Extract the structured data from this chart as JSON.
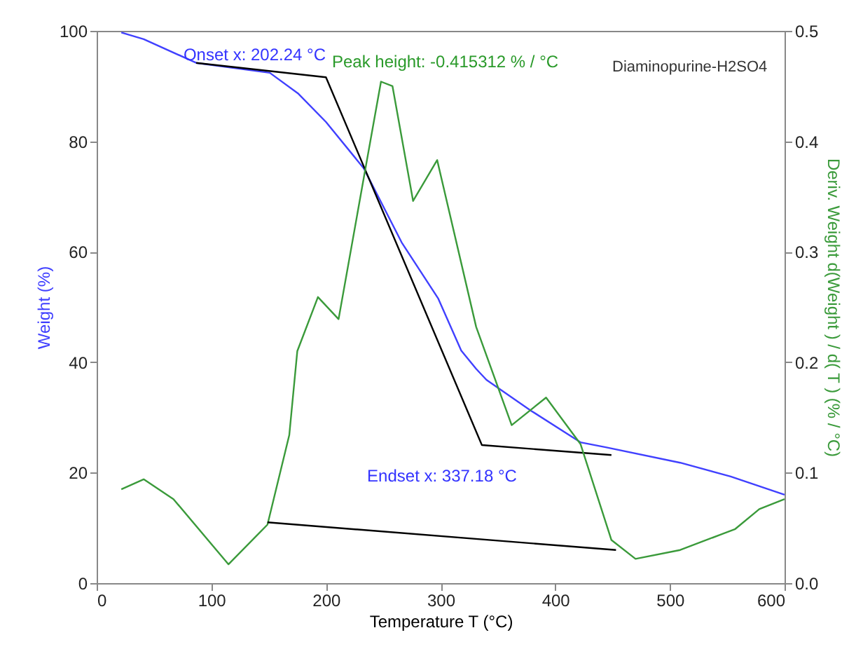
{
  "chart_data": {
    "type": "line",
    "xlabel": "Temperature T (°C)",
    "ylabel": "Weight (%)",
    "y2label": "Deriv. Weight d(Weight ) / d( T ) (% / °C)",
    "xlim": [
      0,
      600
    ],
    "xticks": [
      0,
      100,
      200,
      300,
      400,
      500,
      600
    ],
    "ylim": [
      0,
      100
    ],
    "yticks": [
      0,
      20,
      40,
      60,
      80,
      100
    ],
    "y2lim": [
      0,
      0.5
    ],
    "y2ticks": [
      {
        "value": 0,
        "label": "0.0"
      },
      0.1,
      0.2,
      0.3,
      0.4,
      0.5
    ],
    "grid": false,
    "marker": "none",
    "line_style": "solid",
    "series": [
      {
        "color": "#4040ff",
        "x": [
          21.5,
          41,
          86.8,
          151,
          176,
          200,
          233,
          266,
          298,
          318,
          331,
          340,
          379,
          422,
          444,
          509,
          553,
          600
        ],
        "values": [
          99.7,
          98.5,
          94.2,
          92.4,
          88.6,
          83.5,
          75.1,
          61.7,
          51.5,
          42.1,
          38.8,
          36.8,
          31.2,
          25.5,
          24.6,
          21.8,
          19.3,
          16
        ]
      },
      {
        "color": "#000000",
        "x": [
          86.8,
          200,
          336,
          449
        ],
        "values": [
          94.2,
          91.6,
          25.0,
          23.2
        ]
      },
      {
        "color": "#3a9a3a",
        "axis": "y2",
        "x": [
          21.5,
          41,
          67,
          115,
          149,
          168,
          175,
          193,
          211,
          233,
          248,
          258,
          276,
          297,
          331,
          362,
          392,
          422,
          449,
          470,
          509,
          557,
          578,
          600
        ],
        "values": [
          0.085,
          0.094,
          0.076,
          0.017,
          0.053,
          0.134,
          0.21,
          0.259,
          0.239,
          0.367,
          0.454,
          0.45,
          0.346,
          0.383,
          0.232,
          0.143,
          0.168,
          0.126,
          0.039,
          0.022,
          0.03,
          0.049,
          0.067,
          0.076
        ]
      },
      {
        "color": "#000000",
        "axis": "y2",
        "x": [
          149,
          453
        ],
        "values": [
          0.055,
          0.03
        ]
      }
    ],
    "annotations": [
      {
        "text": "Onset x: 202.24 °C",
        "x": 202.24,
        "y": 91.6
      },
      "Peak height: -0.415312 % / °C",
      "Diaminopurine-H2SO4",
      {
        "text": "Endset x: 337.18 °C",
        "x": 337.18,
        "y": 25.0
      }
    ]
  }
}
